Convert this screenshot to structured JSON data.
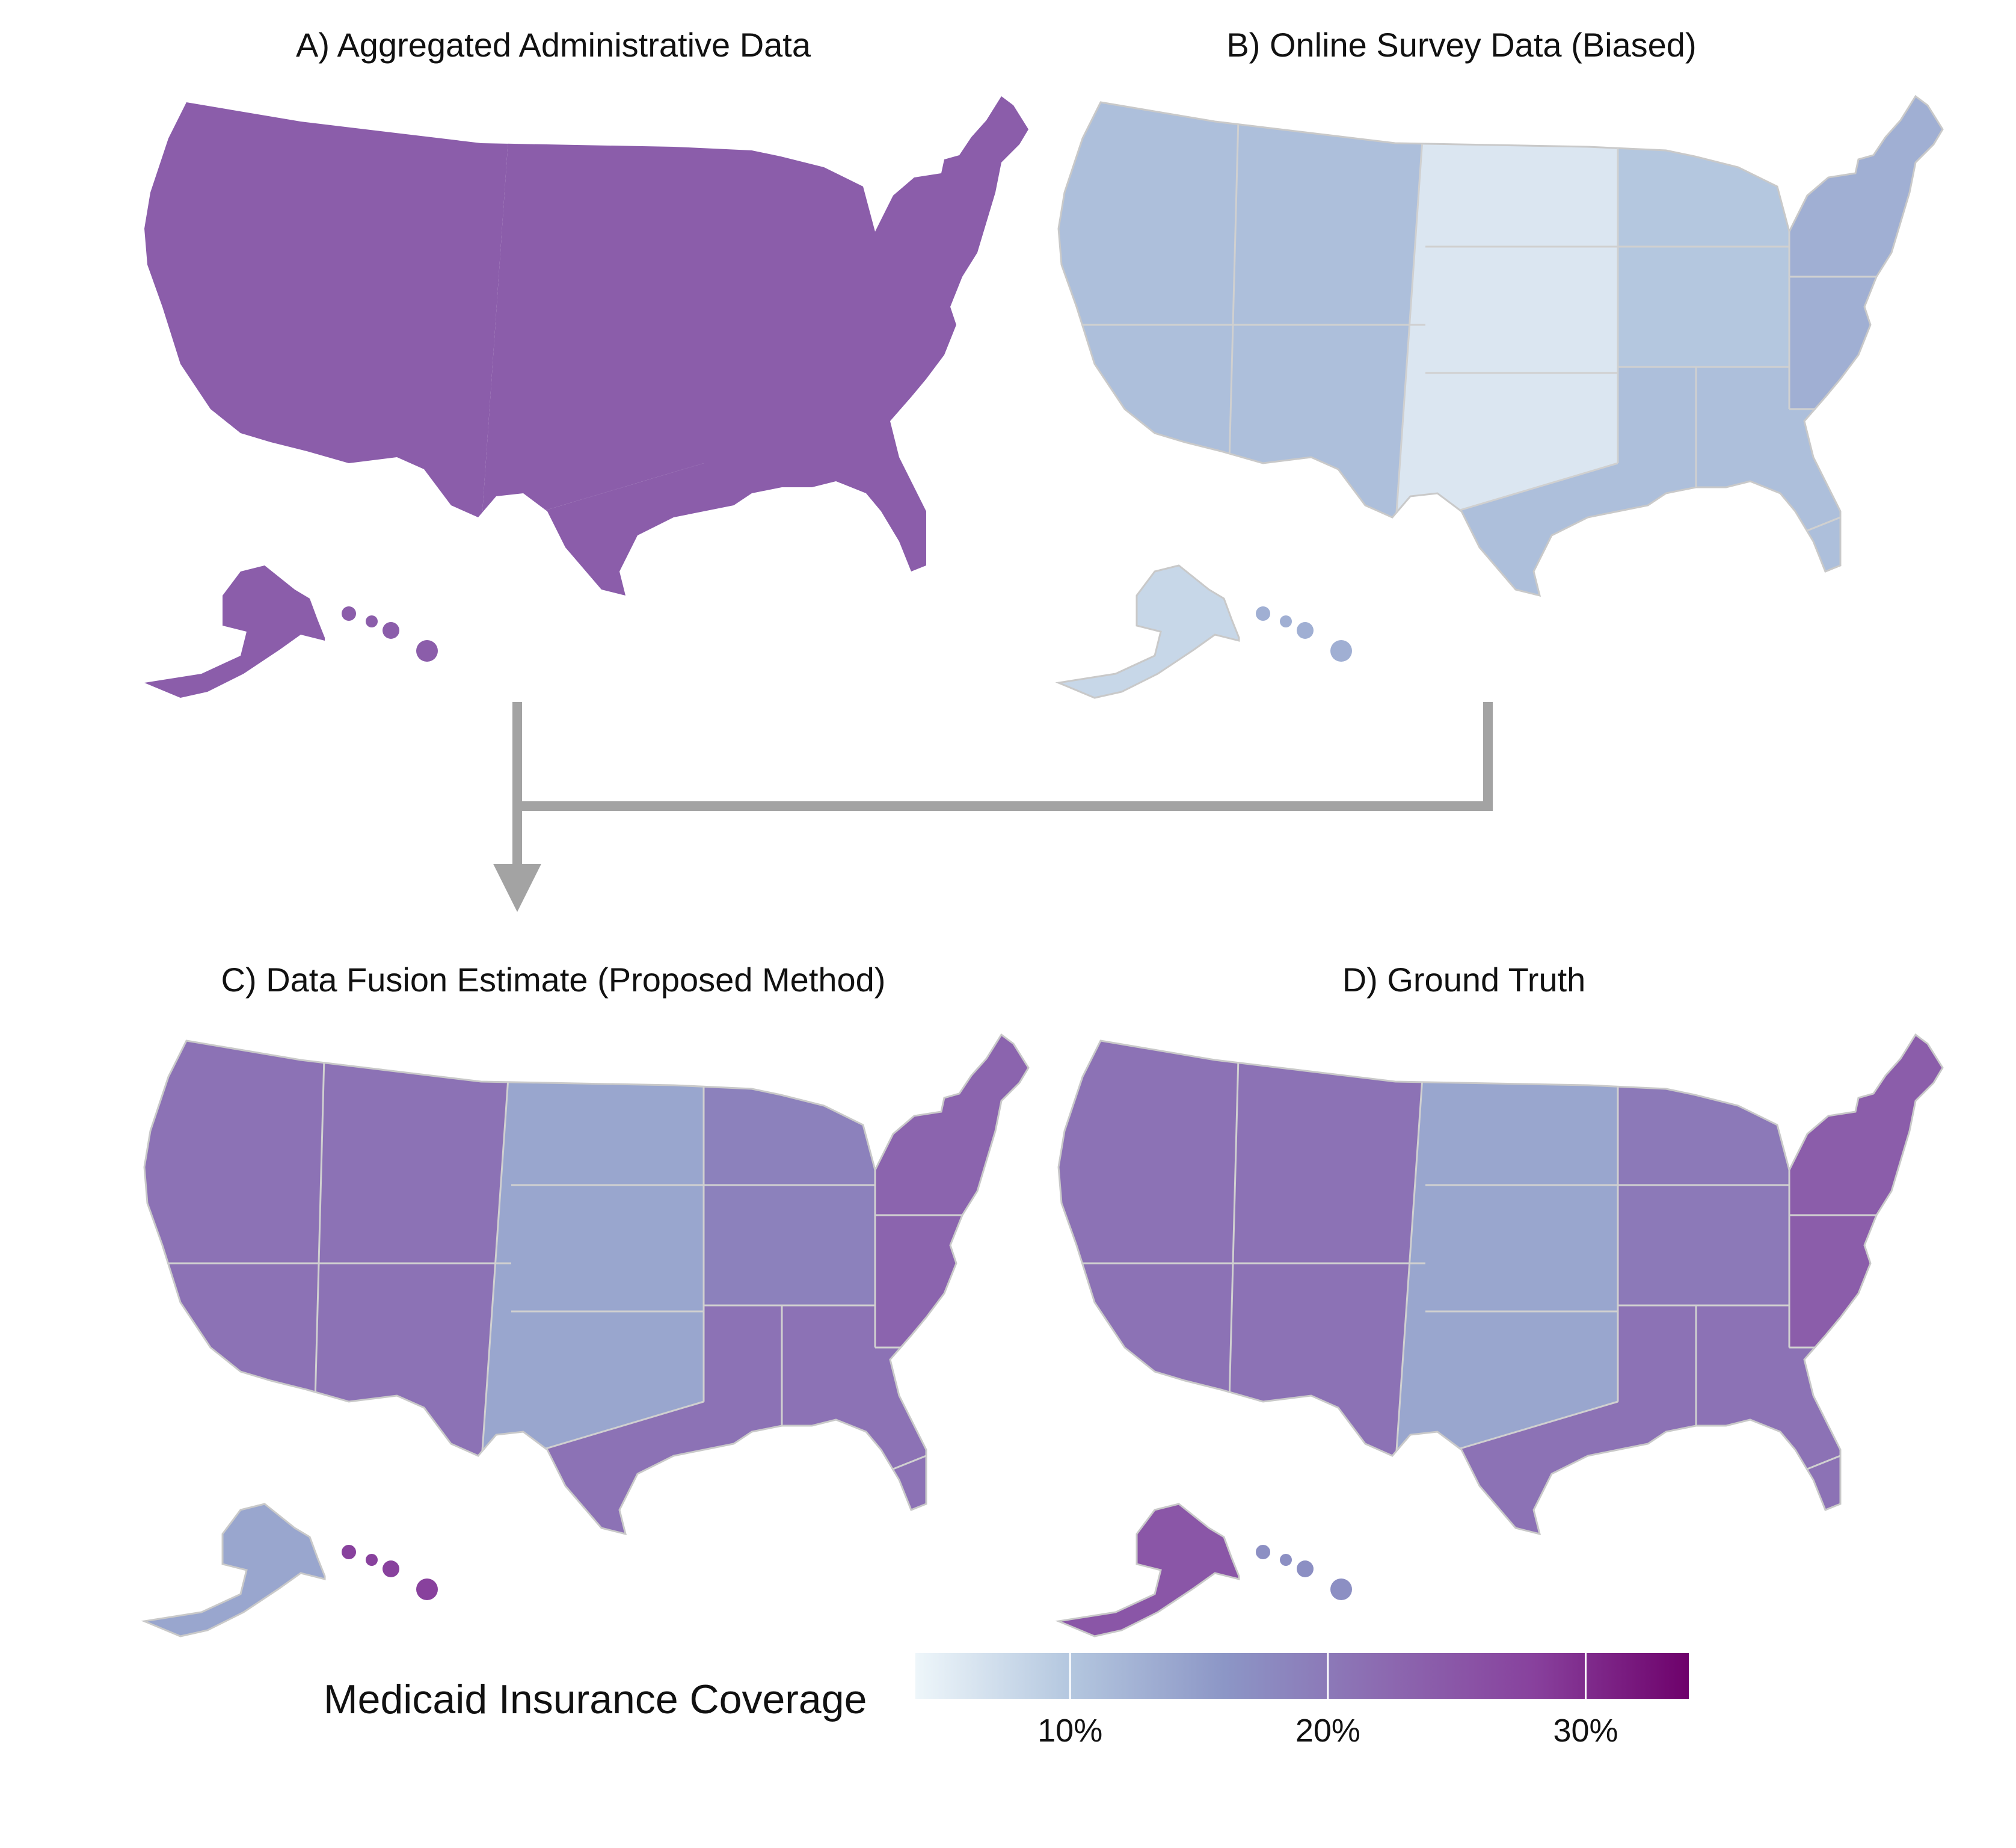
{
  "panels": [
    {
      "id": "A",
      "title": "A) Aggregated Administrative Data",
      "hues": {
        "west": 24,
        "plains": 24,
        "midwest": 24,
        "south": 24,
        "northeast": 24,
        "alaska": 24,
        "hawaii": 24
      }
    },
    {
      "id": "B",
      "title": "B) Online Survey Data (Biased)",
      "hues": {
        "west": 11,
        "plains": 6,
        "midwest": 10,
        "south": 11,
        "northeast": 13,
        "alaska": 8,
        "hawaii": 13
      }
    },
    {
      "id": "C",
      "title": "C) Data Fusion Estimate (Proposed Method)",
      "hues": {
        "west": 21,
        "plains": 14,
        "midwest": 19,
        "south": 21,
        "northeast": 23,
        "alaska": 14,
        "hawaii": 28
      }
    },
    {
      "id": "D",
      "title": "D) Ground Truth",
      "hues": {
        "west": 21,
        "plains": 14,
        "midwest": 20,
        "south": 21,
        "northeast": 24,
        "alaska": 25,
        "hawaii": 17
      }
    }
  ],
  "legend": {
    "title": "Medicaid Insurance Coverage",
    "min": 4,
    "max": 34,
    "ticks": [
      10,
      20,
      30
    ],
    "tick_labels": [
      "10%",
      "20%",
      "30%"
    ],
    "colors": [
      "#eef6fa",
      "#b4c7df",
      "#8c96c6",
      "#8c6bb1",
      "#88419d",
      "#6e016b"
    ]
  }
}
